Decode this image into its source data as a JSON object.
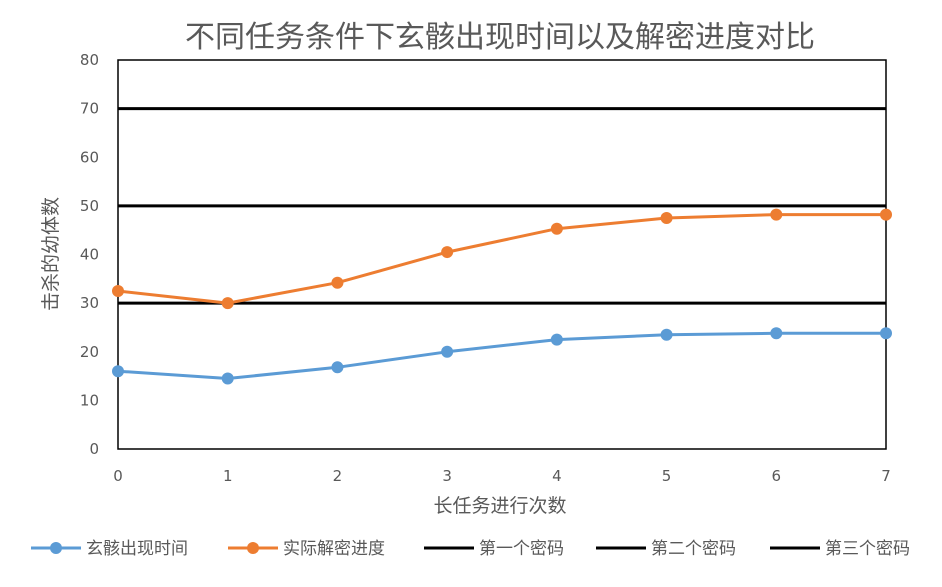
{
  "chart_data": {
    "type": "line",
    "title": "不同任务条件下玄骸出现时间以及解密进度对比",
    "xlabel": "长任务进行次数",
    "ylabel": "击杀的幼体数",
    "x": [
      0,
      1,
      2,
      3,
      4,
      5,
      6,
      7
    ],
    "xticks": [
      "0",
      "1",
      "2",
      "3",
      "4",
      "5",
      "6",
      "7"
    ],
    "ylim": [
      0,
      80
    ],
    "yticks": [
      "0",
      "10",
      "20",
      "30",
      "40",
      "50",
      "60",
      "70",
      "80"
    ],
    "series": [
      {
        "name": "玄骸出现时间",
        "color": "#5b9bd5",
        "values": [
          16,
          14.5,
          16.8,
          20,
          22.5,
          23.5,
          23.8,
          23.8
        ]
      },
      {
        "name": "实际解密进度",
        "color": "#ed7d31",
        "values": [
          32.5,
          30,
          34.2,
          40.5,
          45.3,
          47.5,
          48.2,
          48.2
        ]
      }
    ],
    "reference_lines": [
      {
        "name": "第一个密码",
        "color": "#000000",
        "value": 30
      },
      {
        "name": "第二个密码",
        "color": "#000000",
        "value": 50
      },
      {
        "name": "第三个密码",
        "color": "#000000",
        "value": 70
      }
    ],
    "grid": false,
    "legend_position": "bottom"
  }
}
